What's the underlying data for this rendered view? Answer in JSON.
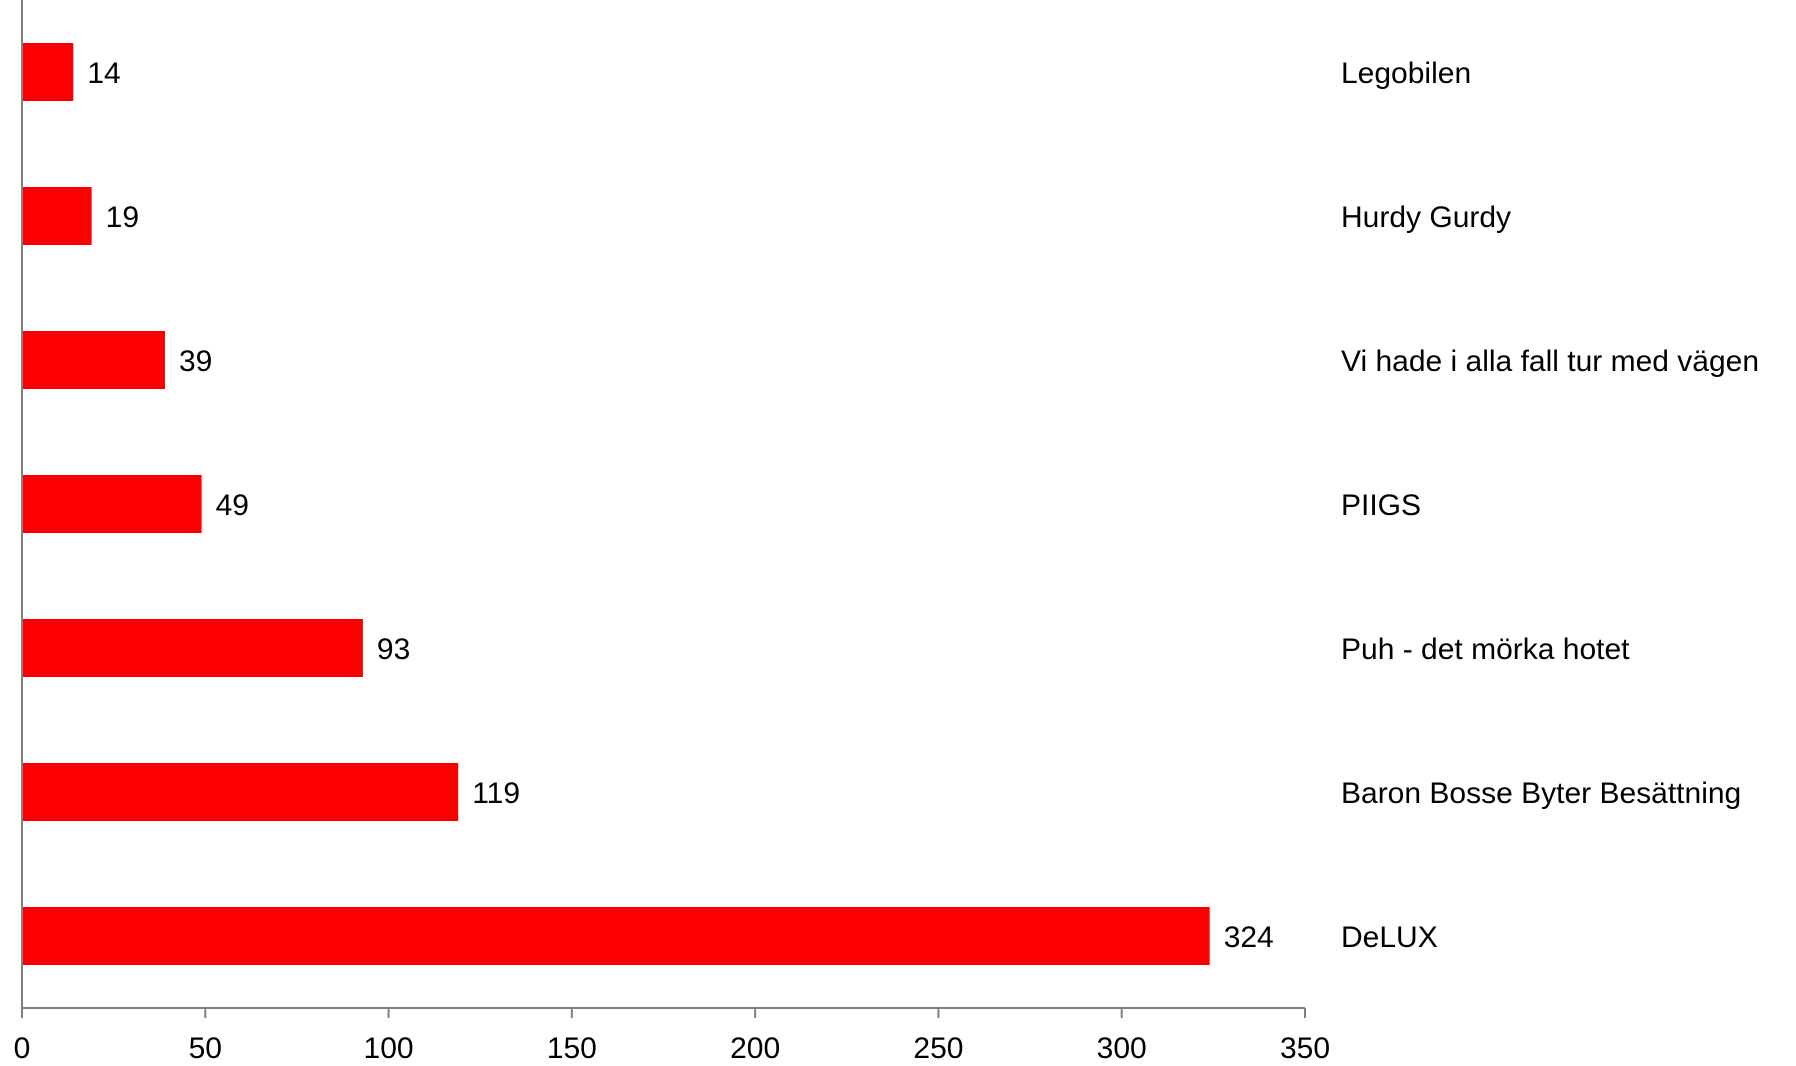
{
  "chart_data": {
    "type": "bar",
    "orientation": "horizontal",
    "title": "",
    "xlabel": "",
    "ylabel": "",
    "categories": [
      "Legobilen",
      "Hurdy Gurdy",
      "Vi hade i alla fall tur med vägen",
      "PIIGS",
      "Puh - det mörka hotet",
      "Baron Bosse Byter Besättning",
      "DeLUX"
    ],
    "values": [
      14,
      19,
      39,
      49,
      93,
      119,
      324
    ],
    "xlim": [
      0,
      350
    ],
    "xticks": [
      0,
      50,
      100,
      150,
      200,
      250,
      300,
      350
    ],
    "grid": false,
    "legend": "none",
    "bar_color": "#ff0000",
    "axis_color": "#808080"
  }
}
